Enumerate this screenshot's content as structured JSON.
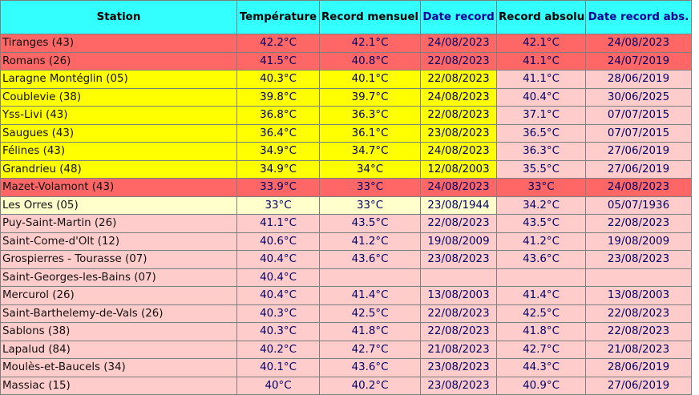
{
  "headers": {
    "station": "Station",
    "temp": "Température",
    "record_mensuel": "Record mensuel",
    "date_record": "Date record",
    "record_absolu": "Record absolu",
    "date_record_abs": "Date record abs."
  },
  "colors": {
    "header_bg": "#33ffff",
    "red_row": "#ff6666",
    "yellow_row": "#ffff00",
    "cream_row": "#ffffcc",
    "pink_row": "#ffcccc"
  },
  "rows": [
    {
      "station": "Tiranges (43)",
      "temp": "42.2°C",
      "rm": "42.1°C",
      "dr": "24/08/2023",
      "ra": "42.1°C",
      "dra": "24/08/2023",
      "style": "red"
    },
    {
      "station": "Romans (26)",
      "temp": "41.5°C",
      "rm": "40.8°C",
      "dr": "22/08/2023",
      "ra": "41.1°C",
      "dra": "24/07/2019",
      "style": "red"
    },
    {
      "station": "Laragne Montéglin (05)",
      "temp": "40.3°C",
      "rm": "40.1°C",
      "dr": "22/08/2023",
      "ra": "41.1°C",
      "dra": "28/06/2019",
      "style": "yel"
    },
    {
      "station": "Coublevie (38)",
      "temp": "39.8°C",
      "rm": "39.7°C",
      "dr": "24/08/2023",
      "ra": "40.4°C",
      "dra": "30/06/2025",
      "style": "yel"
    },
    {
      "station": "Yss-Livi (43)",
      "temp": "36.8°C",
      "rm": "36.3°C",
      "dr": "22/08/2023",
      "ra": "37.1°C",
      "dra": "07/07/2015",
      "style": "yel"
    },
    {
      "station": "Saugues (43)",
      "temp": "36.4°C",
      "rm": "36.1°C",
      "dr": "23/08/2023",
      "ra": "36.5°C",
      "dra": "07/07/2015",
      "style": "yel"
    },
    {
      "station": "Félines (43)",
      "temp": "34.9°C",
      "rm": "34.7°C",
      "dr": "24/08/2023",
      "ra": "36.3°C",
      "dra": "27/06/2019",
      "style": "yel"
    },
    {
      "station": "Grandrieu (48)",
      "temp": "34.9°C",
      "rm": "34°C",
      "dr": "12/08/2003",
      "ra": "35.5°C",
      "dra": "27/06/2019",
      "style": "yel"
    },
    {
      "station": "Mazet-Volamont (43)",
      "temp": "33.9°C",
      "rm": "33°C",
      "dr": "24/08/2023",
      "ra": "33°C",
      "dra": "24/08/2023",
      "style": "red"
    },
    {
      "station": "Les Orres (05)",
      "temp": "33°C",
      "rm": "33°C",
      "dr": "23/08/1944",
      "ra": "34.2°C",
      "dra": "05/07/1936",
      "style": "cream"
    },
    {
      "station": "Puy-Saint-Martin (26)",
      "temp": "41.1°C",
      "rm": "43.5°C",
      "dr": "22/08/2023",
      "ra": "43.5°C",
      "dra": "22/08/2023",
      "style": "pink"
    },
    {
      "station": "Saint-Come-d'Olt (12)",
      "temp": "40.6°C",
      "rm": "41.2°C",
      "dr": "19/08/2009",
      "ra": "41.2°C",
      "dra": "19/08/2009",
      "style": "pink"
    },
    {
      "station": "Grospierres - Tourasse (07)",
      "temp": "40.4°C",
      "rm": "43.6°C",
      "dr": "23/08/2023",
      "ra": "43.6°C",
      "dra": "23/08/2023",
      "style": "pink"
    },
    {
      "station": "Saint-Georges-les-Bains (07)",
      "temp": "40.4°C",
      "rm": "",
      "dr": "",
      "ra": "",
      "dra": "",
      "style": "pink"
    },
    {
      "station": "Mercurol (26)",
      "temp": "40.4°C",
      "rm": "41.4°C",
      "dr": "13/08/2003",
      "ra": "41.4°C",
      "dra": "13/08/2003",
      "style": "pink"
    },
    {
      "station": "Saint-Barthelemy-de-Vals (26)",
      "temp": "40.3°C",
      "rm": "42.5°C",
      "dr": "22/08/2023",
      "ra": "42.5°C",
      "dra": "22/08/2023",
      "style": "pink"
    },
    {
      "station": "Sablons (38)",
      "temp": "40.3°C",
      "rm": "41.8°C",
      "dr": "22/08/2023",
      "ra": "41.8°C",
      "dra": "22/08/2023",
      "style": "pink"
    },
    {
      "station": "Lapalud (84)",
      "temp": "40.2°C",
      "rm": "42.7°C",
      "dr": "21/08/2023",
      "ra": "42.7°C",
      "dra": "21/08/2023",
      "style": "pink"
    },
    {
      "station": "Moulès-et-Baucels (34)",
      "temp": "40.1°C",
      "rm": "43.6°C",
      "dr": "23/08/2023",
      "ra": "44.3°C",
      "dra": "28/06/2019",
      "style": "pink"
    },
    {
      "station": "Massiac (15)",
      "temp": "40°C",
      "rm": "40.2°C",
      "dr": "23/08/2023",
      "ra": "40.9°C",
      "dra": "27/06/2019",
      "style": "pink"
    }
  ]
}
